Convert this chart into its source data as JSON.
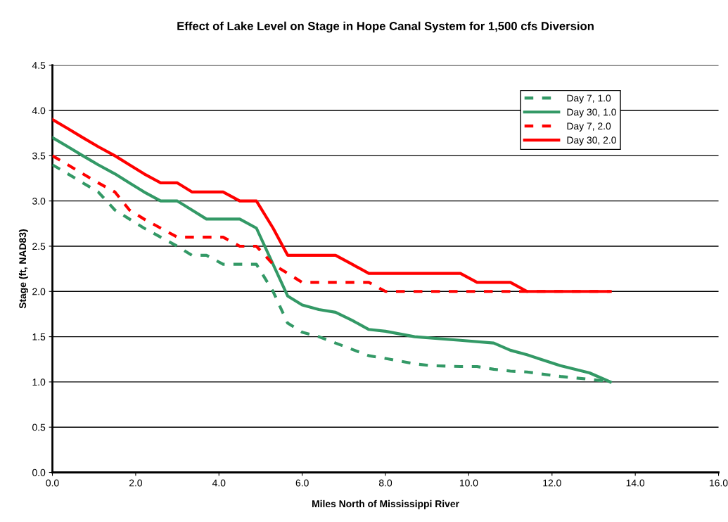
{
  "chart_data": {
    "type": "line",
    "title": "Effect of Lake Level on Stage in Hope Canal System for 1,500 cfs Diversion",
    "xlabel": "Miles North of Mississippi River",
    "ylabel": "Stage (ft, NAD83)",
    "xlim": [
      0,
      16
    ],
    "ylim": [
      0,
      4.5
    ],
    "xticks": [
      {
        "value": 0,
        "label": "0.0"
      },
      {
        "value": 2,
        "label": "2.0"
      },
      {
        "value": 4,
        "label": "4.0"
      },
      {
        "value": 6,
        "label": "6.0"
      },
      {
        "value": 8,
        "label": "8.0"
      },
      {
        "value": 10,
        "label": "10.0"
      },
      {
        "value": 12,
        "label": "12.0"
      },
      {
        "value": 14,
        "label": "14.0"
      },
      {
        "value": 16,
        "label": "16.0"
      }
    ],
    "yticks": [
      {
        "value": 0,
        "label": "0.0"
      },
      0.5,
      {
        "value": 1,
        "label": "1.0"
      },
      1.5,
      {
        "value": 2,
        "label": "2.0"
      },
      2.5,
      {
        "value": 3,
        "label": "3.0"
      },
      3.5,
      {
        "value": 4,
        "label": "4.0"
      },
      4.5
    ],
    "grid": "y",
    "legend": "top right",
    "marker": "none",
    "series": [
      {
        "name": "Day 7, 1.0",
        "color": "#339966",
        "line_style": "dashed",
        "x": [
          0,
          0.37,
          0.73,
          1.1,
          1.5,
          1.85,
          2.2,
          2.6,
          3.0,
          3.35,
          3.7,
          4.1,
          4.9,
          5.3,
          5.65,
          6.0,
          6.4,
          6.8,
          7.2,
          7.6,
          8.0,
          8.7,
          9.1,
          9.8,
          10.2,
          10.6,
          11.0,
          11.4,
          12.2,
          12.9,
          13.4
        ],
        "values": [
          3.4,
          3.3,
          3.2,
          3.1,
          2.9,
          2.8,
          2.7,
          2.6,
          2.5,
          2.4,
          2.4,
          2.3,
          2.3,
          2.0,
          1.65,
          1.55,
          1.5,
          1.43,
          1.36,
          1.29,
          1.26,
          1.2,
          1.18,
          1.17,
          1.17,
          1.14,
          1.12,
          1.11,
          1.06,
          1.03,
          1.0
        ]
      },
      {
        "name": "Day 30, 1.0",
        "color": "#339966",
        "line_style": "solid",
        "x": [
          0,
          0.37,
          0.73,
          1.1,
          1.5,
          1.85,
          2.2,
          2.6,
          3.0,
          3.35,
          3.7,
          4.5,
          4.9,
          5.65,
          6.0,
          6.4,
          6.8,
          7.2,
          7.6,
          8.0,
          8.7,
          9.8,
          10.6,
          11.0,
          11.4,
          12.2,
          12.9,
          13.4
        ],
        "values": [
          3.7,
          3.6,
          3.5,
          3.4,
          3.3,
          3.2,
          3.1,
          3.0,
          3.0,
          2.9,
          2.8,
          2.8,
          2.7,
          1.95,
          1.85,
          1.8,
          1.77,
          1.68,
          1.58,
          1.56,
          1.5,
          1.46,
          1.43,
          1.35,
          1.3,
          1.18,
          1.1,
          1.0
        ]
      },
      {
        "name": "Day 7, 2.0",
        "color": "#ff0000",
        "line_style": "dashed",
        "x": [
          0,
          0.37,
          0.73,
          1.1,
          1.5,
          1.85,
          2.2,
          2.6,
          3.0,
          4.1,
          4.5,
          4.9,
          5.3,
          5.65,
          6.0,
          7.6,
          8.0,
          13.4
        ],
        "values": [
          3.5,
          3.4,
          3.3,
          3.2,
          3.1,
          2.9,
          2.8,
          2.7,
          2.6,
          2.6,
          2.5,
          2.5,
          2.3,
          2.2,
          2.1,
          2.1,
          2.0,
          2.0
        ]
      },
      {
        "name": "Day 30, 2.0",
        "color": "#ff0000",
        "line_style": "solid",
        "x": [
          0,
          0.37,
          0.73,
          1.1,
          1.5,
          1.85,
          2.2,
          2.6,
          3.0,
          3.35,
          4.1,
          4.5,
          4.9,
          5.3,
          5.65,
          6.8,
          7.2,
          7.6,
          9.8,
          10.2,
          11.0,
          11.4,
          13.4
        ],
        "values": [
          3.9,
          3.8,
          3.7,
          3.6,
          3.5,
          3.4,
          3.3,
          3.2,
          3.2,
          3.1,
          3.1,
          3.0,
          3.0,
          2.7,
          2.4,
          2.4,
          2.3,
          2.2,
          2.2,
          2.1,
          2.1,
          2.0,
          2.0
        ]
      }
    ]
  }
}
